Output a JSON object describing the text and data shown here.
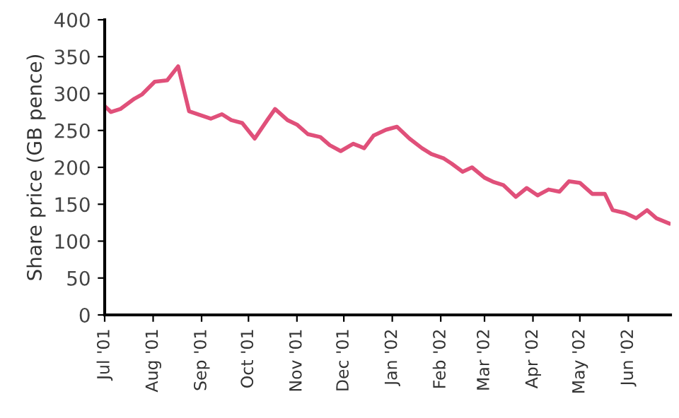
{
  "chart_data": {
    "type": "line",
    "ylabel": "Share price (GB pence)",
    "x": [
      "2001-07-01",
      "2001-07-05",
      "2001-07-11",
      "2001-07-20",
      "2001-07-25",
      "2001-08-02",
      "2001-08-10",
      "2001-08-17",
      "2001-08-24",
      "2001-09-07",
      "2001-09-14",
      "2001-09-20",
      "2001-09-27",
      "2001-10-05",
      "2001-10-13",
      "2001-10-18",
      "2001-10-26",
      "2001-11-01",
      "2001-11-08",
      "2001-11-16",
      "2001-11-22",
      "2001-11-29",
      "2001-12-07",
      "2001-12-14",
      "2001-12-20",
      "2001-12-28",
      "2002-01-04",
      "2002-01-12",
      "2002-01-20",
      "2002-01-26",
      "2002-02-03",
      "2002-02-08",
      "2002-02-15",
      "2002-02-21",
      "2002-03-01",
      "2002-03-07",
      "2002-03-13",
      "2002-03-21",
      "2002-03-28",
      "2002-04-04",
      "2002-04-11",
      "2002-04-18",
      "2002-04-24",
      "2002-05-01",
      "2002-05-09",
      "2002-05-17",
      "2002-05-22",
      "2002-05-30",
      "2002-06-06",
      "2002-06-13",
      "2002-06-19",
      "2002-06-27"
    ],
    "series": [
      {
        "color": "#e0507a",
        "values": [
          283,
          275,
          279,
          293,
          299,
          316,
          318,
          337,
          276,
          266,
          272,
          264,
          260,
          239,
          264,
          279,
          264,
          258,
          245,
          241,
          230,
          222,
          232,
          226,
          243,
          251,
          255,
          239,
          226,
          218,
          212,
          205,
          194,
          200,
          186,
          180,
          176,
          160,
          172,
          162,
          170,
          167,
          181,
          179,
          164,
          164,
          142,
          138,
          131,
          142,
          131,
          124
        ]
      }
    ],
    "xlim": [
      "2001-07-01",
      "2002-06-28"
    ],
    "xticks": [
      {
        "value": "2001-07-01",
        "label": "Jul '01"
      },
      {
        "value": "2001-08-01",
        "label": "Aug '01"
      },
      {
        "value": "2001-09-01",
        "label": "Sep '01"
      },
      {
        "value": "2001-10-01",
        "label": "Oct '01"
      },
      {
        "value": "2001-11-01",
        "label": "Nov '01"
      },
      {
        "value": "2001-12-01",
        "label": "Dec '01"
      },
      {
        "value": "2002-01-01",
        "label": "Jan '02"
      },
      {
        "value": "2002-02-01",
        "label": "Feb '02"
      },
      {
        "value": "2002-03-01",
        "label": "Mar '02"
      },
      {
        "value": "2002-04-01",
        "label": "Apr '02"
      },
      {
        "value": "2002-05-01",
        "label": "May '02"
      },
      {
        "value": "2002-06-01",
        "label": "Jun '02"
      }
    ],
    "ylim": [
      0,
      400
    ],
    "yticks": [
      0,
      50,
      100,
      150,
      200,
      250,
      300,
      350,
      400
    ],
    "grid": false,
    "legend": false,
    "marker": "none",
    "line_style": "solid"
  }
}
